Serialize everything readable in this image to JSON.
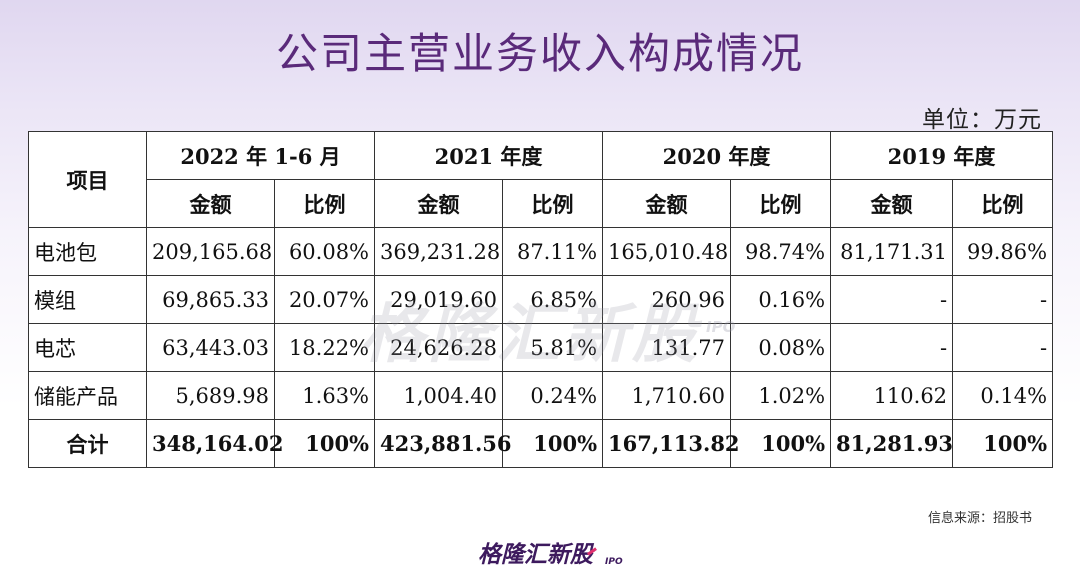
{
  "title": "公司主营业务收入构成情况",
  "unit": "单位：万元",
  "watermark": {
    "text": "格隆汇新股",
    "tag": "IPO"
  },
  "table": {
    "corner_header": "项目",
    "periods": [
      "2022 年 1-6 月",
      "2021 年度",
      "2020 年度",
      "2019 年度"
    ],
    "amount_label": "金额",
    "ratio_label": "比例",
    "rows": [
      {
        "label": "电池包",
        "cells": [
          "209,165.68",
          "60.08%",
          "369,231.28",
          "87.11%",
          "165,010.48",
          "98.74%",
          "81,171.31",
          "99.86%"
        ]
      },
      {
        "label": "模组",
        "cells": [
          "69,865.33",
          "20.07%",
          "29,019.60",
          "6.85%",
          "260.96",
          "0.16%",
          "-",
          "-"
        ]
      },
      {
        "label": "电芯",
        "cells": [
          "63,443.03",
          "18.22%",
          "24,626.28",
          "5.81%",
          "131.77",
          "0.08%",
          "-",
          "-"
        ]
      },
      {
        "label": "储能产品",
        "cells": [
          "5,689.98",
          "1.63%",
          "1,004.40",
          "0.24%",
          "1,710.60",
          "1.02%",
          "110.62",
          "0.14%"
        ]
      },
      {
        "label": "合计",
        "cells": [
          "348,164.02",
          "100%",
          "423,881.56",
          "100%",
          "167,113.82",
          "100%",
          "81,281.93",
          "100%"
        ]
      }
    ]
  },
  "source": "信息来源：招股书",
  "logo": {
    "text": "格隆汇新股",
    "tag": "IPO"
  }
}
